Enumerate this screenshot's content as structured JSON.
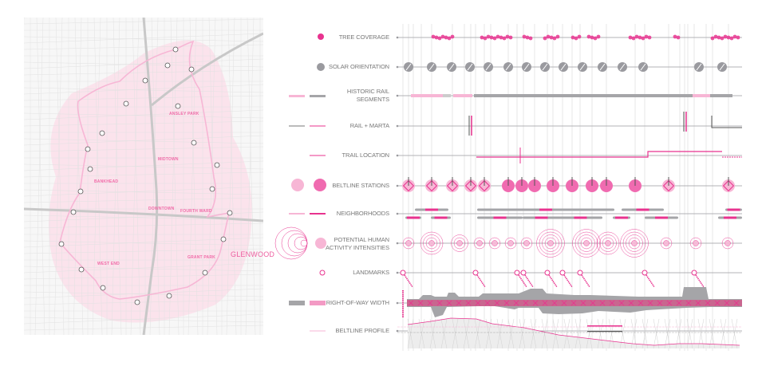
{
  "map": {
    "neighborhoods": [
      "ANSLEY PARK",
      "MIDTOWN",
      "BANKHEAD",
      "DOWNTOWN",
      "FOURTH WARD",
      "WEST END",
      "GRANT PARK"
    ],
    "highlight": "GLENWOOD",
    "legend_icons": [
      "beltline-trail",
      "beltline-buffer"
    ]
  },
  "rows": [
    {
      "label": "TREE COVERAGE"
    },
    {
      "label": "SOLAR ORIENTATION"
    },
    {
      "label": "HISTORIC RAIL SEGMENTS"
    },
    {
      "label": "RAIL + MARTA"
    },
    {
      "label": "TRAIL LOCATION"
    },
    {
      "label": "BELTLINE STATIONS"
    },
    {
      "label": "NEIGHBORHOODS"
    },
    {
      "label": "POTENTIAL HUMAN ACTIVITY INTENSITIES"
    },
    {
      "label": "LANDMARKS"
    },
    {
      "label": "RIGHT-OF-WAY WIDTH"
    },
    {
      "label": "BELTLINE PROFILE"
    }
  ],
  "colors": {
    "accent": "#e8338f",
    "accent_light": "#f7b6d5",
    "gray": "#a5a5a8",
    "map_pink": "#fbe3ec",
    "grid": "#dddddd",
    "label": "#777777"
  }
}
